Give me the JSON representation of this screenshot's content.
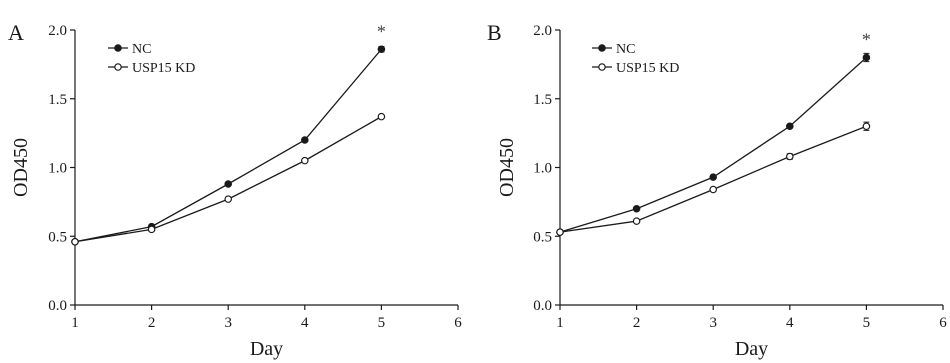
{
  "chart_data": [
    {
      "type": "line",
      "panel_label": "A",
      "xlabel": "Day",
      "ylabel": "OD450",
      "xlim": [
        1,
        6
      ],
      "ylim": [
        0.0,
        2.0
      ],
      "x_ticks": [
        "1",
        "2",
        "3",
        "4",
        "5",
        "6"
      ],
      "y_ticks": [
        "0.0",
        "0.5",
        "1.0",
        "1.5",
        "2.0"
      ],
      "grid": false,
      "legend_position": "top-left",
      "x": [
        1,
        2,
        3,
        4,
        5
      ],
      "series": [
        {
          "name": "NC",
          "marker": "filled-circle",
          "values": [
            0.46,
            0.57,
            0.88,
            1.2,
            1.86
          ],
          "errors": [
            0,
            0.01,
            0.01,
            0.01,
            0.02
          ]
        },
        {
          "name": "USP15 KD",
          "marker": "open-circle",
          "values": [
            0.46,
            0.55,
            0.77,
            1.05,
            1.37
          ],
          "errors": [
            0,
            0.01,
            0.01,
            0.01,
            0.01
          ]
        }
      ],
      "annotations": [
        {
          "text": "*",
          "x": 5
        }
      ]
    },
    {
      "type": "line",
      "panel_label": "B",
      "xlabel": "Day",
      "ylabel": "OD450",
      "xlim": [
        1,
        6
      ],
      "ylim": [
        0.0,
        2.0
      ],
      "x_ticks": [
        "1",
        "2",
        "3",
        "4",
        "5",
        "6"
      ],
      "y_ticks": [
        "0.0",
        "0.5",
        "1.0",
        "1.5",
        "2.0"
      ],
      "grid": false,
      "legend_position": "top-left",
      "x": [
        1,
        2,
        3,
        4,
        5
      ],
      "series": [
        {
          "name": "NC",
          "marker": "filled-circle",
          "values": [
            0.53,
            0.7,
            0.93,
            1.3,
            1.8
          ],
          "errors": [
            0,
            0.01,
            0.01,
            0.01,
            0.03
          ]
        },
        {
          "name": "USP15 KD",
          "marker": "open-circle",
          "values": [
            0.53,
            0.61,
            0.84,
            1.08,
            1.3
          ],
          "errors": [
            0,
            0.01,
            0.01,
            0.02,
            0.03
          ]
        }
      ],
      "annotations": [
        {
          "text": "*",
          "x": 5
        }
      ]
    }
  ]
}
